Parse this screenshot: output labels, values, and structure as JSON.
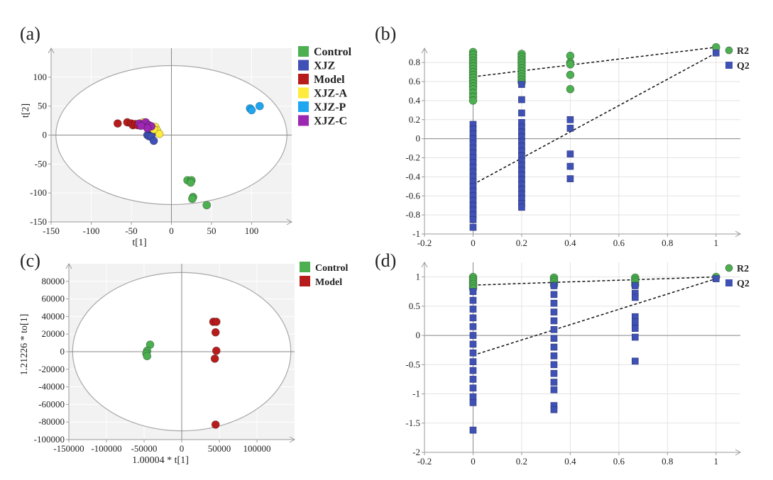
{
  "colors": {
    "Control": "#4caf50",
    "XJZ": "#3f51b5",
    "Model": "#b71c1c",
    "XJZ-A": "#ffeb3b",
    "XJZ-P": "#1ea7f0",
    "XJZ-C": "#9c27b0",
    "R2": "#4caf50",
    "Q2": "#3f51b5"
  },
  "panel_labels": {
    "a": "(a)",
    "b": "(b)",
    "c": "(c)",
    "d": "(d)"
  },
  "chart_data": [
    {
      "id": "a",
      "type": "scatter",
      "xlabel": "t[1]",
      "ylabel": "t[2]",
      "xlim": [
        -150,
        150
      ],
      "ylim": [
        -150,
        150
      ],
      "xticks": [
        -150,
        -100,
        -50,
        0,
        50,
        100
      ],
      "yticks": [
        -150,
        -100,
        -50,
        0,
        50,
        100
      ],
      "legend": [
        "Control",
        "XJZ",
        "Model",
        "XJZ-A",
        "XJZ-P",
        "XJZ-C"
      ],
      "ellipse": {
        "rx": 144,
        "ry": 120
      },
      "series": [
        {
          "name": "Control",
          "points": [
            [
              20,
              -78
            ],
            [
              25,
              -78
            ],
            [
              24,
              -82
            ],
            [
              27,
              -107
            ],
            [
              26,
              -110
            ],
            [
              44,
              -121
            ]
          ]
        },
        {
          "name": "XJZ",
          "points": [
            [
              -27,
              10
            ],
            [
              -23,
              5
            ],
            [
              -30,
              0
            ],
            [
              -28,
              -2
            ],
            [
              -25,
              -3
            ],
            [
              -22,
              -10
            ]
          ]
        },
        {
          "name": "Model",
          "points": [
            [
              -67,
              20
            ],
            [
              -55,
              22
            ],
            [
              -50,
              20
            ],
            [
              -48,
              17
            ],
            [
              -45,
              19
            ],
            [
              -42,
              17
            ]
          ]
        },
        {
          "name": "XJZ-A",
          "points": [
            [
              -35,
              22
            ],
            [
              -30,
              18
            ],
            [
              -25,
              15
            ],
            [
              -20,
              14
            ],
            [
              -18,
              8
            ],
            [
              -15,
              2
            ],
            [
              -22,
              10
            ]
          ]
        },
        {
          "name": "XJZ-P",
          "points": [
            [
              98,
              46
            ],
            [
              100,
              43
            ],
            [
              110,
              50
            ]
          ]
        },
        {
          "name": "XJZ-C",
          "points": [
            [
              -40,
              20
            ],
            [
              -35,
              18
            ],
            [
              -32,
              22
            ],
            [
              -28,
              17
            ],
            [
              -25,
              15
            ],
            [
              -30,
              12
            ],
            [
              -38,
              16
            ]
          ]
        }
      ]
    },
    {
      "id": "b",
      "type": "scatter",
      "xlim": [
        -0.2,
        1.1
      ],
      "ylim": [
        -1,
        0.95
      ],
      "xticks": [
        -0.2,
        0,
        0.2,
        0.4,
        0.6,
        0.8,
        1
      ],
      "yticks": [
        -1,
        -0.8,
        -0.6,
        -0.4,
        -0.2,
        0,
        0.2,
        0.4,
        0.6,
        0.8
      ],
      "legend": [
        "R2",
        "Q2"
      ],
      "series": [
        {
          "name": "R2",
          "marker": "circle",
          "points": [
            [
              0,
              0.91
            ],
            [
              0,
              0.88
            ],
            [
              0,
              0.85
            ],
            [
              0,
              0.82
            ],
            [
              0,
              0.79
            ],
            [
              0,
              0.76
            ],
            [
              0,
              0.73
            ],
            [
              0,
              0.7
            ],
            [
              0,
              0.67
            ],
            [
              0,
              0.64
            ],
            [
              0,
              0.61
            ],
            [
              0,
              0.58
            ],
            [
              0,
              0.55
            ],
            [
              0,
              0.52
            ],
            [
              0,
              0.48
            ],
            [
              0,
              0.44
            ],
            [
              0,
              0.4
            ],
            [
              0.2,
              0.89
            ],
            [
              0.2,
              0.86
            ],
            [
              0.2,
              0.83
            ],
            [
              0.2,
              0.8
            ],
            [
              0.2,
              0.77
            ],
            [
              0.2,
              0.74
            ],
            [
              0.2,
              0.71
            ],
            [
              0.2,
              0.68
            ],
            [
              0.2,
              0.65
            ],
            [
              0.2,
              0.62
            ],
            [
              0.2,
              0.59
            ],
            [
              0.4,
              0.87
            ],
            [
              0.4,
              0.8
            ],
            [
              0.4,
              0.78
            ],
            [
              0.4,
              0.67
            ],
            [
              0.4,
              0.52
            ],
            [
              1,
              0.96
            ]
          ]
        },
        {
          "name": "Q2",
          "marker": "square",
          "points": [
            [
              0,
              0.15
            ],
            [
              0,
              0.1
            ],
            [
              0,
              0.05
            ],
            [
              0,
              0.0
            ],
            [
              0,
              -0.05
            ],
            [
              0,
              -0.1
            ],
            [
              0,
              -0.15
            ],
            [
              0,
              -0.2
            ],
            [
              0,
              -0.25
            ],
            [
              0,
              -0.3
            ],
            [
              0,
              -0.35
            ],
            [
              0,
              -0.4
            ],
            [
              0,
              -0.45
            ],
            [
              0,
              -0.5
            ],
            [
              0,
              -0.55
            ],
            [
              0,
              -0.6
            ],
            [
              0,
              -0.65
            ],
            [
              0,
              -0.7
            ],
            [
              0,
              -0.75
            ],
            [
              0,
              -0.8
            ],
            [
              0,
              -0.85
            ],
            [
              0,
              -0.93
            ],
            [
              0.2,
              0.57
            ],
            [
              0.2,
              0.41
            ],
            [
              0.2,
              0.27
            ],
            [
              0.2,
              0.17
            ],
            [
              0.2,
              0.12
            ],
            [
              0.2,
              0.07
            ],
            [
              0.2,
              0.02
            ],
            [
              0.2,
              -0.03
            ],
            [
              0.2,
              -0.08
            ],
            [
              0.2,
              -0.13
            ],
            [
              0.2,
              -0.18
            ],
            [
              0.2,
              -0.23
            ],
            [
              0.2,
              -0.28
            ],
            [
              0.2,
              -0.33
            ],
            [
              0.2,
              -0.38
            ],
            [
              0.2,
              -0.43
            ],
            [
              0.2,
              -0.48
            ],
            [
              0.2,
              -0.53
            ],
            [
              0.2,
              -0.58
            ],
            [
              0.2,
              -0.63
            ],
            [
              0.2,
              -0.68
            ],
            [
              0.2,
              -0.72
            ],
            [
              0.4,
              0.2
            ],
            [
              0.4,
              0.11
            ],
            [
              0.4,
              -0.16
            ],
            [
              0.4,
              -0.29
            ],
            [
              0.4,
              -0.42
            ],
            [
              1,
              0.9
            ]
          ]
        }
      ],
      "lines": [
        {
          "name": "R2 regression",
          "from": [
            0,
            0.65
          ],
          "to": [
            1,
            0.96
          ]
        },
        {
          "name": "Q2 regression",
          "from": [
            0,
            -0.48
          ],
          "to": [
            1,
            0.9
          ]
        }
      ]
    },
    {
      "id": "c",
      "type": "scatter",
      "xlabel": "1.00004 * t[1]",
      "ylabel": "1.21226 * to[1]",
      "xlim": [
        -150000,
        150000
      ],
      "ylim": [
        -100000,
        100000
      ],
      "xticks": [
        -150000,
        -100000,
        -50000,
        0,
        50000,
        100000
      ],
      "yticks": [
        -100000,
        -80000,
        -60000,
        -40000,
        -20000,
        0,
        20000,
        40000,
        60000,
        80000
      ],
      "xticklabels": [
        "-150000",
        "-100000",
        "-50000",
        "0",
        "50000",
        "100000"
      ],
      "yticklabels": [
        "-100000",
        "-80000",
        "-60000",
        "-40000",
        "-20000",
        "0",
        "20000",
        "40000",
        "60000",
        "80000"
      ],
      "legend": [
        "Control",
        "Model"
      ],
      "ellipse": {
        "rx": 145000,
        "ry": 90000
      },
      "series": [
        {
          "name": "Control",
          "points": [
            [
              -42000,
              8000
            ],
            [
              -46000,
              1000
            ],
            [
              -47000,
              -2000
            ],
            [
              -46000,
              -5000
            ]
          ]
        },
        {
          "name": "Model",
          "points": [
            [
              42000,
              34000
            ],
            [
              46000,
              34000
            ],
            [
              45000,
              22000
            ],
            [
              46000,
              1000
            ],
            [
              44000,
              -8000
            ],
            [
              45000,
              -83000
            ]
          ]
        }
      ]
    },
    {
      "id": "d",
      "type": "scatter",
      "xlim": [
        -0.2,
        1.1
      ],
      "ylim": [
        -2,
        1.25
      ],
      "xticks": [
        -0.2,
        0,
        0.2,
        0.4,
        0.6,
        0.8,
        1
      ],
      "yticks": [
        -2,
        -1.5,
        -1,
        -0.5,
        0,
        0.5,
        1
      ],
      "legend": [
        "R2",
        "Q2"
      ],
      "series": [
        {
          "name": "R2",
          "marker": "circle",
          "points": [
            [
              0,
              1.0
            ],
            [
              0,
              0.96
            ],
            [
              0,
              0.92
            ],
            [
              0,
              0.88
            ],
            [
              0,
              0.84
            ],
            [
              0,
              0.8
            ],
            [
              0.333,
              0.99
            ],
            [
              0.333,
              0.95
            ],
            [
              0.333,
              0.91
            ],
            [
              0.333,
              0.86
            ],
            [
              0.667,
              0.99
            ],
            [
              0.667,
              0.95
            ],
            [
              0.667,
              0.91
            ],
            [
              0.667,
              0.86
            ],
            [
              1,
              1.0
            ]
          ]
        },
        {
          "name": "Q2",
          "marker": "square",
          "points": [
            [
              0,
              0.75
            ],
            [
              0,
              0.6
            ],
            [
              0,
              0.45
            ],
            [
              0,
              0.3
            ],
            [
              0,
              0.15
            ],
            [
              0,
              0.0
            ],
            [
              0,
              -0.15
            ],
            [
              0,
              -0.3
            ],
            [
              0,
              -0.45
            ],
            [
              0,
              -0.6
            ],
            [
              0,
              -0.75
            ],
            [
              0,
              -0.9
            ],
            [
              0,
              -1.05
            ],
            [
              0,
              -1.15
            ],
            [
              0,
              -1.62
            ],
            [
              0.333,
              0.85
            ],
            [
              0.333,
              0.7
            ],
            [
              0.333,
              0.55
            ],
            [
              0.333,
              0.4
            ],
            [
              0.333,
              0.25
            ],
            [
              0.333,
              0.1
            ],
            [
              0.333,
              -0.05
            ],
            [
              0.333,
              -0.2
            ],
            [
              0.333,
              -0.35
            ],
            [
              0.333,
              -0.5
            ],
            [
              0.333,
              -0.65
            ],
            [
              0.333,
              -0.8
            ],
            [
              0.333,
              -0.93
            ],
            [
              0.333,
              -1.2
            ],
            [
              0.333,
              -1.27
            ],
            [
              0.667,
              0.85
            ],
            [
              0.667,
              0.72
            ],
            [
              0.667,
              0.65
            ],
            [
              0.667,
              0.32
            ],
            [
              0.667,
              0.23
            ],
            [
              0.667,
              0.12
            ],
            [
              0.667,
              -0.03
            ],
            [
              0.667,
              -0.44
            ],
            [
              1,
              0.97
            ]
          ]
        }
      ],
      "lines": [
        {
          "name": "R2 regression",
          "from": [
            0,
            0.86
          ],
          "to": [
            1,
            1.0
          ]
        },
        {
          "name": "Q2 regression",
          "from": [
            0,
            -0.34
          ],
          "to": [
            1,
            0.97
          ]
        }
      ]
    }
  ]
}
